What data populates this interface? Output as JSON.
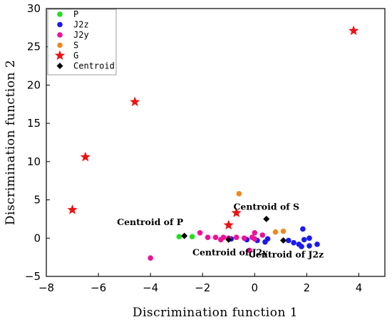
{
  "chart_data": {
    "type": "scatter",
    "title": "",
    "xlabel": "Discrimination function 1",
    "ylabel": "Discrimination function 2",
    "xlim": [
      -8,
      5
    ],
    "ylim": [
      -5,
      30
    ],
    "xticks": [
      -8,
      -6,
      -4,
      -2,
      0,
      2,
      4
    ],
    "yticks": [
      -5,
      0,
      5,
      10,
      15,
      20,
      25,
      30
    ],
    "grid": false,
    "legend_position": "top-left",
    "series": [
      {
        "name": "P",
        "marker": "circle",
        "color": "#22dd22",
        "points": [
          [
            -2.9,
            0.2
          ],
          [
            -2.4,
            0.2
          ]
        ]
      },
      {
        "name": "J2z",
        "marker": "circle",
        "color": "#1a1aee",
        "points": [
          [
            -0.9,
            -0.1
          ],
          [
            -0.3,
            -0.2
          ],
          [
            0.1,
            -0.3
          ],
          [
            0.4,
            -0.5
          ],
          [
            0.5,
            -0.1
          ],
          [
            1.3,
            -0.3
          ],
          [
            1.5,
            -0.6
          ],
          [
            1.7,
            -0.8
          ],
          [
            1.9,
            -0.2
          ],
          [
            1.85,
            1.2
          ],
          [
            2.1,
            0.0
          ],
          [
            2.1,
            -1.0
          ],
          [
            2.4,
            -0.8
          ],
          [
            1.8,
            -1.1
          ]
        ]
      },
      {
        "name": "J2y",
        "marker": "circle",
        "color": "#ee1199",
        "points": [
          [
            -4.0,
            -2.6
          ],
          [
            -2.1,
            0.7
          ],
          [
            -1.8,
            0.1
          ],
          [
            -1.5,
            0.1
          ],
          [
            -1.2,
            0.1
          ],
          [
            -1.0,
            0.0
          ],
          [
            -0.7,
            0.1
          ],
          [
            -0.4,
            0.0
          ],
          [
            -0.1,
            0.1
          ],
          [
            -0.2,
            -1.6
          ],
          [
            0.0,
            0.7
          ],
          [
            0.3,
            0.4
          ],
          [
            0.0,
            -0.1
          ],
          [
            -1.3,
            -0.2
          ]
        ]
      },
      {
        "name": "S",
        "marker": "circle",
        "color": "#ee8822",
        "points": [
          [
            -0.6,
            5.8
          ],
          [
            0.8,
            0.8
          ],
          [
            1.1,
            0.9
          ]
        ]
      },
      {
        "name": "G",
        "marker": "star",
        "color": "#ee1111",
        "points": [
          [
            -7.0,
            3.7
          ],
          [
            -6.5,
            10.6
          ],
          [
            -4.6,
            17.8
          ],
          [
            -1.0,
            1.7
          ],
          [
            -0.7,
            3.3
          ],
          [
            3.8,
            27.1
          ]
        ]
      },
      {
        "name": "Centroid",
        "marker": "diamond",
        "color": "#000000",
        "points": [
          [
            -2.7,
            0.3
          ],
          [
            -1.0,
            -0.2
          ],
          [
            0.45,
            2.5
          ],
          [
            1.1,
            -0.3
          ]
        ]
      }
    ],
    "annotations": [
      {
        "text": "Centroid of P",
        "x": -2.7,
        "y": 0.3
      },
      {
        "text": "Centroid of J2y",
        "x": -1.0,
        "y": -0.2
      },
      {
        "text": "Centroid of S",
        "x": 0.45,
        "y": 2.5
      },
      {
        "text": "Centroid of J2z",
        "x": 1.1,
        "y": -0.3
      }
    ]
  }
}
